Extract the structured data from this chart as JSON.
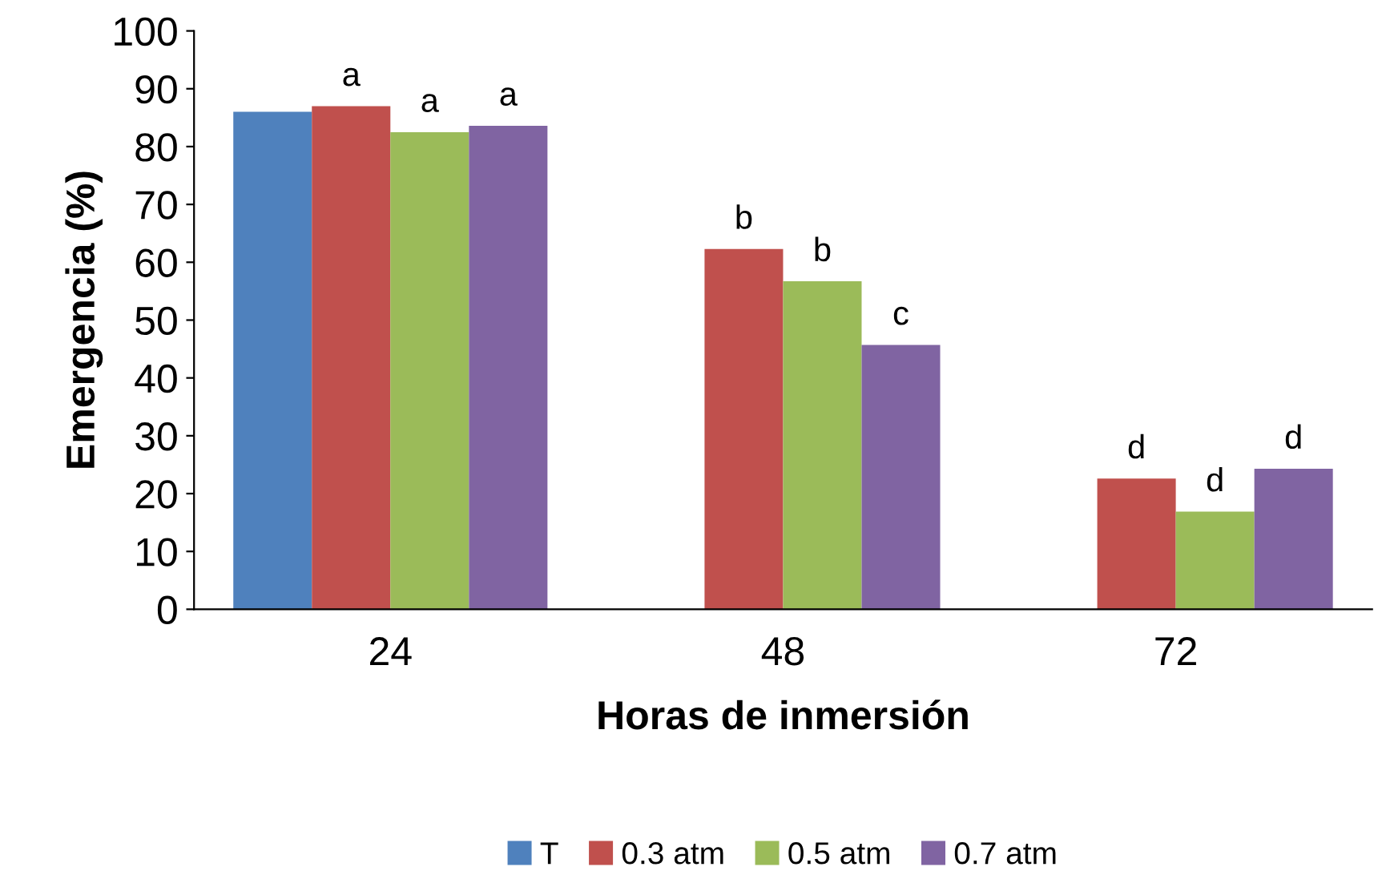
{
  "chart_data": {
    "type": "bar",
    "xlabel": "Horas de inmersión",
    "ylabel": "Emergencia (%)",
    "categories": [
      "24",
      "48",
      "72"
    ],
    "series": [
      {
        "name": "T",
        "color": "#4f81bd",
        "values": [
          86,
          null,
          null
        ]
      },
      {
        "name": "0.3 atm",
        "color": "#c0504d",
        "values": [
          87,
          62.3,
          22.6
        ],
        "value_labels": [
          "a",
          "b",
          "d"
        ]
      },
      {
        "name": "0.5 atm",
        "color": "#9bbb59",
        "values": [
          82.5,
          56.7,
          16.9
        ],
        "value_labels": [
          "a",
          "b",
          "d"
        ]
      },
      {
        "name": "0.7 atm",
        "color": "#8064a2",
        "values": [
          83.6,
          45.7,
          24.3
        ],
        "value_labels": [
          "a",
          "c",
          "d"
        ]
      }
    ],
    "ylim": [
      0,
      100
    ],
    "yticks": [
      0,
      10,
      20,
      30,
      40,
      50,
      60,
      70,
      80,
      90,
      100
    ],
    "grid": false,
    "legend": "bottom"
  }
}
